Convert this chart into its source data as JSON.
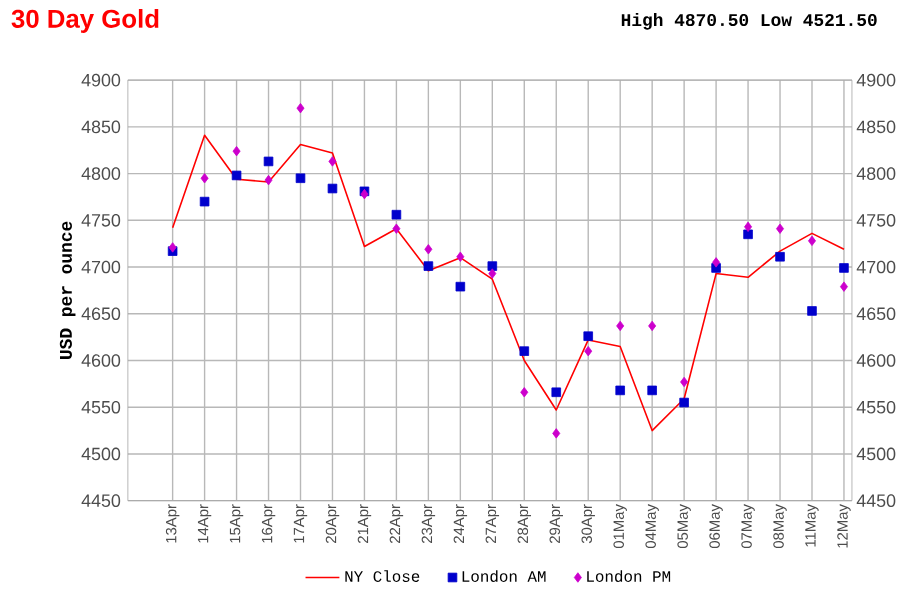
{
  "chart_data": {
    "type": "line",
    "title": "30 Day Gold",
    "subtitle": "High 4870.50 Low 4521.50",
    "ylabel": "USD per ounce",
    "categories": [
      "13Apr",
      "14Apr",
      "15Apr",
      "16Apr",
      "17Apr",
      "20Apr",
      "21Apr",
      "22Apr",
      "23Apr",
      "24Apr",
      "27Apr",
      "28Apr",
      "29Apr",
      "30Apr",
      "01May",
      "04May",
      "05May",
      "06May",
      "07May",
      "08May",
      "11May",
      "12May"
    ],
    "series": [
      {
        "name": "NY Close",
        "marker": "none",
        "color": "#ff0000",
        "values": [
          4742,
          4841,
          4794,
          4791,
          4831,
          4822,
          4722,
          4741,
          4696,
          4710,
          4687,
          4600,
          4547,
          4622,
          4615,
          4525,
          4559,
          4693,
          4689,
          4717,
          4736,
          4719
        ]
      },
      {
        "name": "London AM",
        "type": "scatter",
        "marker": "square",
        "color": "#0000cc",
        "values": [
          4717,
          4770,
          4798,
          4813,
          4795,
          4784,
          4781,
          4756,
          4701,
          4679,
          4701,
          4610,
          4566,
          4626,
          4568,
          4568,
          4555,
          4699,
          4735,
          4711,
          4653,
          4699
        ]
      },
      {
        "name": "London PM",
        "type": "scatter",
        "marker": "diamond",
        "color": "#cc00cc",
        "values": [
          4721,
          4795,
          4824,
          4793,
          4870,
          4813,
          4778,
          4741,
          4719,
          4711,
          4693,
          4566,
          4522,
          4610,
          4637,
          4637,
          4577,
          4705,
          4743,
          4741,
          4728,
          4679
        ]
      }
    ],
    "ylim": [
      4450,
      4900
    ],
    "yticks": [
      4450,
      4500,
      4550,
      4600,
      4650,
      4700,
      4750,
      4800,
      4850,
      4900
    ],
    "y2lim": [
      4450,
      4900
    ],
    "y2ticks": [
      4450,
      4500,
      4550,
      4600,
      4650,
      4700,
      4750,
      4800,
      4850,
      4900
    ],
    "grid": true,
    "legend": "bottom"
  }
}
